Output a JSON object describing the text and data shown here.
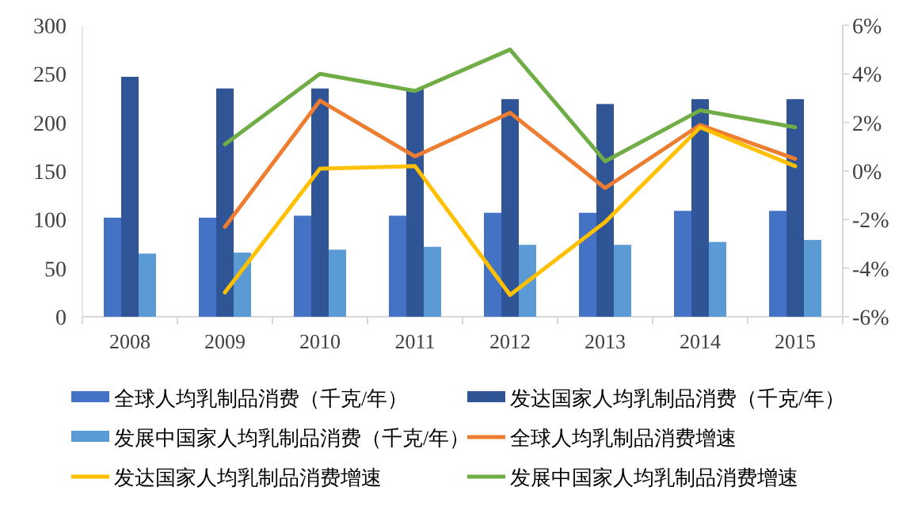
{
  "chart_data": {
    "type": "bar",
    "categories": [
      "2008",
      "2009",
      "2010",
      "2011",
      "2012",
      "2013",
      "2014",
      "2015"
    ],
    "series": [
      {
        "name": "全球人均乳制品消费（千克/年）",
        "color": "#4472c4",
        "values": [
          102,
          102,
          104,
          104,
          107,
          107,
          109,
          109
        ]
      },
      {
        "name": "发达国家人均乳制品消费（千克/年）",
        "color": "#2f5597",
        "values": [
          247,
          235,
          235,
          234,
          224,
          219,
          224,
          224
        ]
      },
      {
        "name": "发展中国家人均乳制品消费（千克/年）",
        "color": "#5b9bd5",
        "values": [
          65,
          66,
          69,
          72,
          74,
          74,
          77,
          79
        ]
      },
      {
        "name": "全球人均乳制品消费增速",
        "type": "line",
        "axis": "y2",
        "color": "#ed7d31",
        "values": [
          null,
          -2.3,
          2.9,
          0.6,
          2.4,
          -0.7,
          1.9,
          0.5
        ]
      },
      {
        "name": "发达国家人均乳制品消费增速",
        "type": "line",
        "axis": "y2",
        "color": "#ffc000",
        "values": [
          null,
          -5.0,
          0.1,
          0.2,
          -5.1,
          -2.1,
          1.8,
          0.2
        ]
      },
      {
        "name": "发展中国家人均乳制品消费增速",
        "type": "line",
        "axis": "y2",
        "color": "#70ad47",
        "values": [
          null,
          1.1,
          4.0,
          3.3,
          5.0,
          0.4,
          2.5,
          1.8
        ]
      }
    ],
    "ylim": [
      0,
      300
    ],
    "yticks": [
      0,
      50,
      100,
      150,
      200,
      250,
      300
    ],
    "y2lim": [
      -6,
      6
    ],
    "y2ticks": [
      {
        "value": -6,
        "label": "-6%"
      },
      {
        "value": -4,
        "label": "-4%"
      },
      {
        "value": -2,
        "label": "-2%"
      },
      {
        "value": 0,
        "label": "0%"
      },
      {
        "value": 2,
        "label": "2%"
      },
      {
        "value": 4,
        "label": "4%"
      },
      {
        "value": 6,
        "label": "6%"
      }
    ],
    "legend": "bottom",
    "grid": false
  }
}
